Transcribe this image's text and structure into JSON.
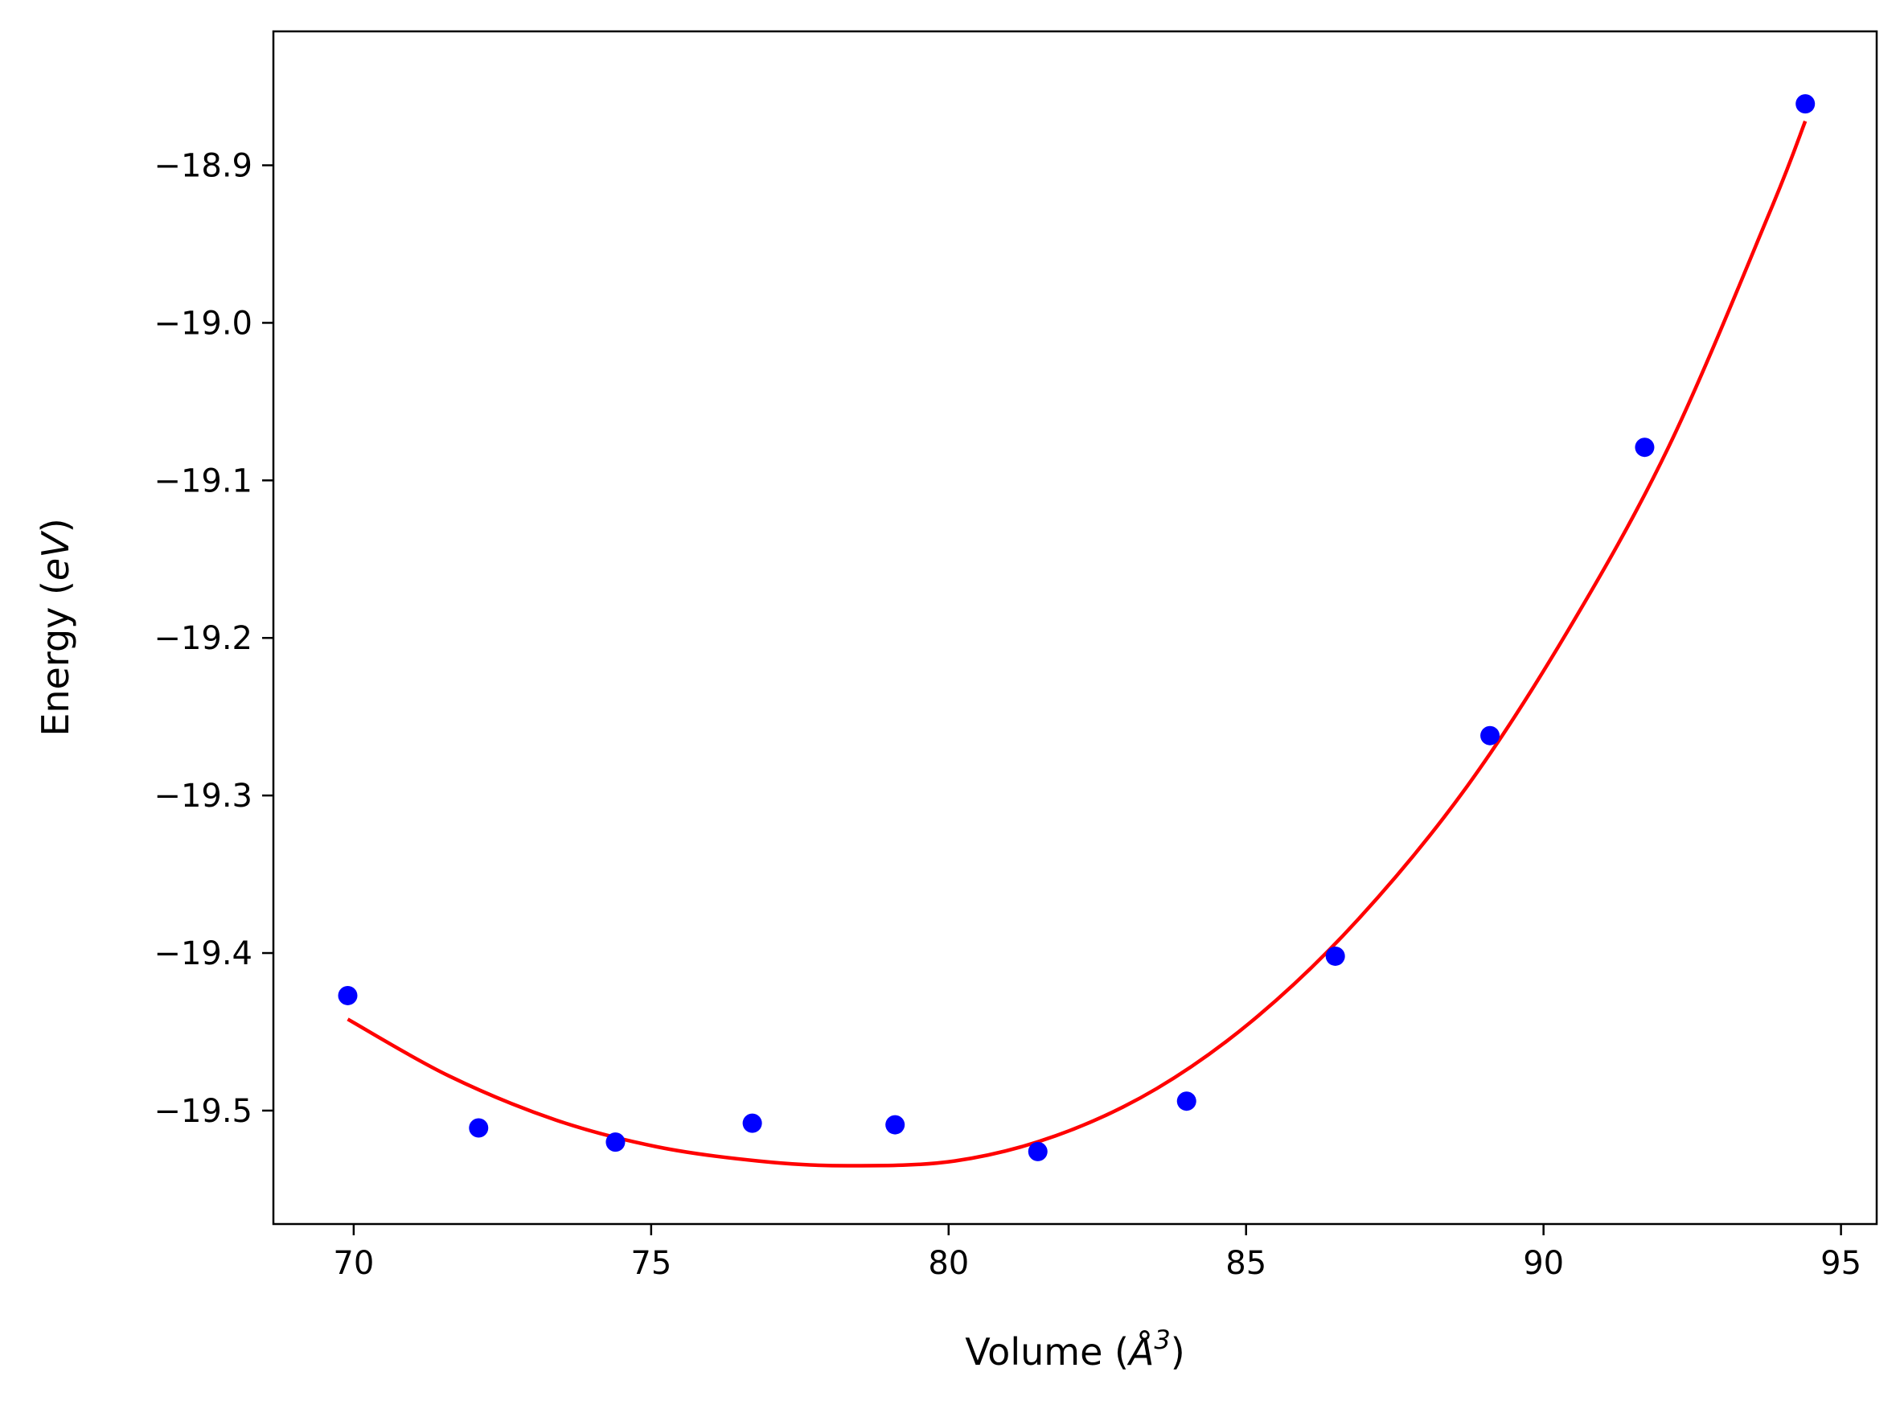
{
  "chart_data": {
    "type": "scatter",
    "xlabel_parts": {
      "prefix": "Volume (",
      "symbol": "Å",
      "sup": "3",
      "suffix": ")"
    },
    "ylabel_parts": {
      "prefix": "Energy (",
      "symbol": "eV",
      "suffix": ")"
    },
    "xlim": [
      68.65,
      95.6
    ],
    "ylim": [
      -19.572,
      -18.815
    ],
    "xticks": [
      70,
      75,
      80,
      85,
      90,
      95
    ],
    "xtick_labels": [
      "70",
      "75",
      "80",
      "85",
      "90",
      "95"
    ],
    "yticks": [
      -18.9,
      -19.0,
      -19.1,
      -19.2,
      -19.3,
      -19.4,
      -19.5
    ],
    "ytick_labels": [
      "−18.9",
      "−19.0",
      "−19.1",
      "−19.2",
      "−19.3",
      "−19.4",
      "−19.5"
    ],
    "grid": false,
    "series": [
      {
        "kind": "points",
        "color": "#0000ff",
        "x": [
          69.9,
          72.1,
          74.4,
          76.7,
          79.1,
          81.5,
          84.0,
          86.5,
          89.1,
          91.7,
          94.4
        ],
        "y": [
          -19.427,
          -19.511,
          -19.52,
          -19.508,
          -19.509,
          -19.526,
          -19.494,
          -19.402,
          -19.262,
          -19.079,
          -18.861
        ]
      },
      {
        "kind": "fit-line",
        "color": "#ff0000",
        "x": [
          69.9,
          71.6,
          73.4,
          75.1,
          76.8,
          78.3,
          80.1,
          81.8,
          83.5,
          85.2,
          86.9,
          88.7,
          90.4,
          92.1,
          93.8,
          94.4
        ],
        "y": [
          -19.442,
          -19.478,
          -19.506,
          -19.523,
          -19.532,
          -19.535,
          -19.532,
          -19.516,
          -19.486,
          -19.44,
          -19.378,
          -19.295,
          -19.196,
          -19.079,
          -18.93,
          -18.872
        ]
      }
    ]
  }
}
